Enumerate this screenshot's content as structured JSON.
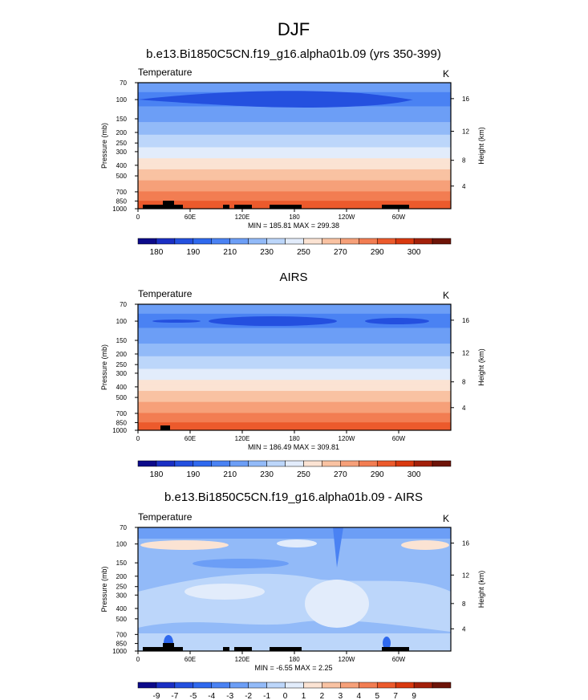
{
  "page_title": "DJF",
  "chart_data": [
    {
      "type": "heatmap",
      "title": "b.e13.Bi1850C5CN.f19_g16.alpha01b.09 (yrs 350-399)",
      "variable": "Temperature",
      "units": "K",
      "ylabel": "Pressure (mb)",
      "ylabel_right": "Height (km)",
      "pressure_ticks": [
        "70",
        "100",
        "150",
        "200",
        "250",
        "300",
        "400",
        "500",
        "700",
        "850",
        "1000"
      ],
      "height_ticks": [
        "16",
        "12",
        "8",
        "4"
      ],
      "longitude_ticks": [
        "0",
        "60E",
        "120E",
        "180",
        "120W",
        "60W"
      ],
      "stats": "MIN = 185.81  MAX = 299.38",
      "colorbar_labels": [
        "180",
        "190",
        "210",
        "230",
        "250",
        "270",
        "290",
        "300"
      ],
      "color_levels": 16,
      "field": "model"
    },
    {
      "type": "heatmap",
      "title": "AIRS",
      "variable": "Temperature",
      "units": "K",
      "ylabel": "Pressure (mb)",
      "ylabel_right": "Height (km)",
      "pressure_ticks": [
        "70",
        "100",
        "150",
        "200",
        "250",
        "300",
        "400",
        "500",
        "700",
        "850",
        "1000"
      ],
      "height_ticks": [
        "16",
        "12",
        "8",
        "4"
      ],
      "longitude_ticks": [
        "0",
        "60E",
        "120E",
        "180",
        "120W",
        "60W"
      ],
      "stats": "MIN = 186.49  MAX = 309.81",
      "colorbar_labels": [
        "180",
        "190",
        "210",
        "230",
        "250",
        "270",
        "290",
        "300"
      ],
      "color_levels": 16,
      "field": "obs"
    },
    {
      "type": "heatmap",
      "title": "b.e13.Bi1850C5CN.f19_g16.alpha01b.09 - AIRS",
      "variable": "Temperature",
      "units": "K",
      "ylabel": "Pressure (mb)",
      "ylabel_right": "Height (km)",
      "pressure_ticks": [
        "70",
        "100",
        "150",
        "200",
        "250",
        "300",
        "400",
        "500",
        "700",
        "850",
        "1000"
      ],
      "height_ticks": [
        "16",
        "12",
        "8",
        "4"
      ],
      "longitude_ticks": [
        "0",
        "60E",
        "120E",
        "180",
        "120W",
        "60W"
      ],
      "stats": "MIN = -6.55  MAX =  2.25",
      "colorbar_labels": [
        "-9",
        "-7",
        "-5",
        "-4",
        "-3",
        "-2",
        "-1",
        "0",
        "1",
        "2",
        "3",
        "4",
        "5",
        "7",
        "9"
      ],
      "color_levels": 16,
      "field": "diff"
    }
  ],
  "colors": {
    "abs_palette": [
      "#0c0a8a",
      "#1a2fc4",
      "#2450df",
      "#2f69ee",
      "#4a82f3",
      "#6c9ef6",
      "#92baf8",
      "#bcd6fa",
      "#e2ecfb",
      "#fbe3d3",
      "#f9c2a2",
      "#f6a079",
      "#f27d52",
      "#ec5a2c",
      "#d9390f",
      "#a3200a",
      "#6e1408"
    ],
    "diff_palette": [
      "#0c0a8a",
      "#1a2fc4",
      "#2450df",
      "#2f69ee",
      "#4a82f3",
      "#6c9ef6",
      "#92baf8",
      "#bcd6fa",
      "#e2ecfb",
      "#fbe3d3",
      "#f9c2a2",
      "#f6a079",
      "#f27d52",
      "#ec5a2c",
      "#d9390f",
      "#a3200a",
      "#6e1408"
    ],
    "terrain": "#000000"
  }
}
